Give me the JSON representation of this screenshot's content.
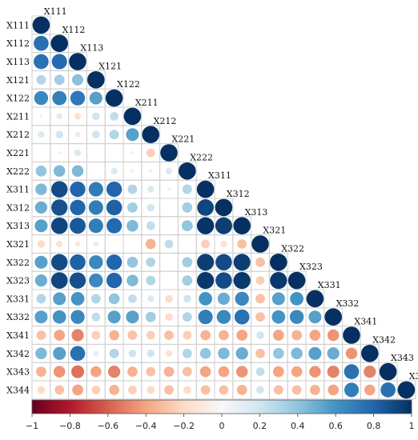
{
  "chart_data": {
    "type": "heatmap",
    "subtype": "correlation-circle-lower-triangle",
    "variables": [
      "X111",
      "X112",
      "X113",
      "X121",
      "X122",
      "X211",
      "X212",
      "X221",
      "X222",
      "X311",
      "X312",
      "X313",
      "X321",
      "X322",
      "X323",
      "X331",
      "X332",
      "X341",
      "X342",
      "X343",
      "X344"
    ],
    "matrix_lower": [
      [
        1.0
      ],
      [
        0.75,
        1.0
      ],
      [
        0.75,
        0.78,
        1.0
      ],
      [
        0.3,
        0.35,
        0.42,
        1.0
      ],
      [
        0.65,
        0.68,
        0.72,
        0.55,
        1.0
      ],
      [
        0.05,
        0.12,
        -0.15,
        0.2,
        0.25,
        1.0
      ],
      [
        0.15,
        0.2,
        0.1,
        0.2,
        0.3,
        0.55,
        1.0
      ],
      [
        0.0,
        0.05,
        0.15,
        0.0,
        0.0,
        0.05,
        -0.25,
        1.0
      ],
      [
        0.4,
        0.45,
        0.45,
        0.0,
        0.15,
        0.05,
        -0.05,
        0.15,
        1.0
      ],
      [
        0.45,
        0.9,
        0.8,
        0.7,
        0.8,
        0.3,
        0.15,
        -0.05,
        0.3,
        1.0
      ],
      [
        0.5,
        0.88,
        0.8,
        0.7,
        0.82,
        0.35,
        0.2,
        0.0,
        0.35,
        0.92,
        1.0
      ],
      [
        0.55,
        0.92,
        0.85,
        0.7,
        0.78,
        0.45,
        0.25,
        0.0,
        0.4,
        0.98,
        0.95,
        1.0
      ],
      [
        -0.2,
        -0.15,
        -0.1,
        0.1,
        0.0,
        0.0,
        -0.35,
        0.25,
        0.0,
        -0.25,
        -0.15,
        -0.3,
        1.0
      ],
      [
        0.55,
        0.9,
        0.82,
        0.65,
        0.8,
        0.4,
        0.3,
        0.0,
        0.35,
        0.95,
        0.9,
        0.95,
        -0.3,
        1.0
      ],
      [
        0.5,
        0.92,
        0.88,
        0.65,
        0.8,
        0.45,
        0.3,
        0.0,
        0.35,
        0.97,
        0.9,
        0.97,
        -0.25,
        0.97,
        1.0
      ],
      [
        0.3,
        0.55,
        0.6,
        0.3,
        0.4,
        0.25,
        0.15,
        -0.2,
        0.2,
        0.6,
        0.5,
        0.65,
        -0.3,
        0.55,
        0.6,
        1.0
      ],
      [
        0.55,
        0.6,
        0.65,
        0.25,
        0.55,
        0.55,
        0.35,
        -0.2,
        0.3,
        0.7,
        0.65,
        0.75,
        -0.3,
        0.6,
        0.65,
        0.55,
        1.0
      ],
      [
        -0.3,
        -0.4,
        -0.5,
        -0.25,
        -0.35,
        -0.3,
        -0.25,
        -0.3,
        -0.25,
        -0.35,
        -0.35,
        -0.4,
        0.2,
        -0.4,
        -0.35,
        -0.4,
        -0.45,
        1.0
      ],
      [
        0.45,
        0.55,
        0.75,
        0.1,
        0.3,
        0.2,
        0.2,
        -0.15,
        0.3,
        0.4,
        0.45,
        0.5,
        -0.3,
        0.4,
        0.45,
        0.55,
        0.5,
        -0.45,
        1.0
      ],
      [
        -0.35,
        -0.45,
        -0.55,
        -0.4,
        -0.5,
        -0.35,
        -0.3,
        -0.35,
        -0.3,
        -0.4,
        -0.4,
        -0.45,
        0.25,
        -0.4,
        -0.4,
        -0.45,
        -0.5,
        0.75,
        -0.5,
        1.0
      ],
      [
        -0.2,
        -0.3,
        -0.4,
        -0.25,
        -0.35,
        -0.25,
        -0.2,
        -0.3,
        -0.2,
        -0.3,
        -0.3,
        -0.35,
        0.2,
        -0.3,
        -0.3,
        -0.35,
        -0.4,
        0.7,
        -0.4,
        0.75,
        1.0
      ]
    ],
    "colorbar": {
      "min": -1,
      "max": 1,
      "ticks": [
        "−1",
        "−0.8",
        "−0.6",
        "−0.4",
        "−0.2",
        "0",
        "0.2",
        "0.4",
        "0.6",
        "0.8",
        "1"
      ],
      "palette": [
        "#67001f",
        "#b2182b",
        "#d6604d",
        "#f4a582",
        "#fddbc7",
        "#f7f7f7",
        "#d1e5f0",
        "#92c5de",
        "#4393c3",
        "#2166ac",
        "#053061"
      ]
    }
  }
}
